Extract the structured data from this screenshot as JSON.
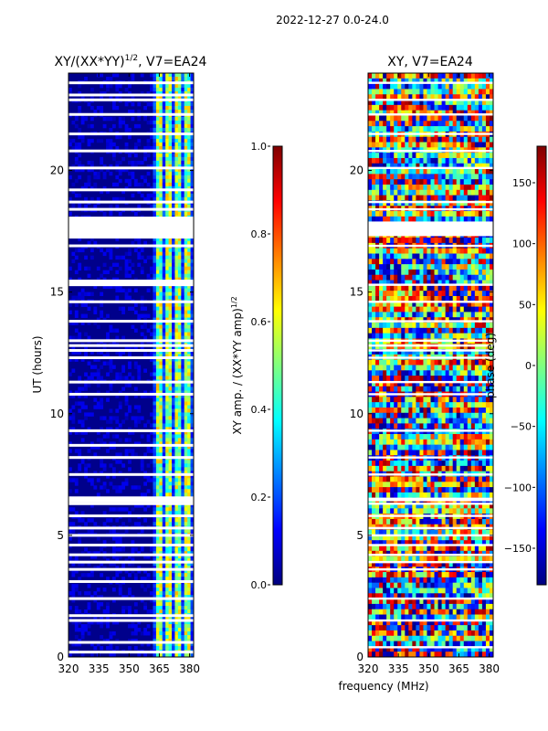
{
  "figure": {
    "suptitle": "2022-12-27 0.0-24.0",
    "shared_xlabel": "frequency (MHz)"
  },
  "colors": {
    "background_low": "#00008b",
    "white": "#ffffff",
    "axis": "#000000"
  },
  "chart_data": [
    {
      "type": "heatmap",
      "name": "amp-ratio",
      "title_text": "XY/(XX*YY)",
      "title_sup": "1/2",
      "title_suffix": ", V7=EA24",
      "xlabel": "",
      "ylabel": "UT (hours)",
      "xlim": [
        320,
        382
      ],
      "ylim": [
        0,
        24
      ],
      "x_ticks": [
        320,
        335,
        350,
        365,
        380
      ],
      "y_ticks": [
        0,
        5,
        10,
        15,
        20
      ],
      "gaps_hours": [
        0.2,
        0.6,
        1.5,
        1.7,
        2.4,
        3.1,
        3.6,
        3.9,
        4.2,
        4.6,
        5.0,
        5.3,
        5.8,
        6.3,
        6.45,
        7.5,
        8.2,
        8.7,
        9.3,
        10.8,
        11.3,
        12.3,
        12.6,
        12.8,
        13.0,
        13.8,
        14.6,
        15.3,
        15.45,
        16.9,
        17.6,
        17.9,
        18.4,
        18.7,
        19.2,
        20.1,
        20.8,
        21.5,
        22.3,
        22.9,
        23.1,
        23.6
      ],
      "gap_wide": [
        [
          6.35,
          6.6
        ],
        [
          15.25,
          15.5
        ],
        [
          17.2,
          18.1
        ]
      ],
      "bright_channels": [
        [
          363,
          366
        ],
        [
          368,
          371
        ],
        [
          373,
          376
        ],
        [
          378,
          381
        ]
      ],
      "colorbar": {
        "label_text": "XY amp. / (XX*YY amp)",
        "label_sup": "1/2",
        "min": 0.0,
        "max": 1.0,
        "ticks": [
          "0.0",
          "0.2",
          "0.4",
          "0.6",
          "0.8",
          "1.0"
        ],
        "tick_values": [
          0.0,
          0.2,
          0.4,
          0.6,
          0.8,
          1.0
        ]
      }
    },
    {
      "type": "heatmap",
      "name": "phase",
      "title_text": "XY, V7=EA24",
      "title_sup": "",
      "title_suffix": "",
      "xlabel": "frequency (MHz)",
      "ylabel": "",
      "xlim": [
        320,
        382
      ],
      "ylim": [
        0,
        24
      ],
      "x_ticks": [
        320,
        335,
        350,
        365,
        380
      ],
      "y_ticks": [
        0,
        5,
        10,
        15,
        20
      ],
      "gaps_hours": [
        0.4,
        1.5,
        2.4,
        3.6,
        3.9,
        4.2,
        4.6,
        5.0,
        5.3,
        5.8,
        6.3,
        7.5,
        8.2,
        9.3,
        10.8,
        11.3,
        12.3,
        12.6,
        12.8,
        13.0,
        13.8,
        14.6,
        15.3,
        16.9,
        17.6,
        18.4,
        18.7,
        20.1,
        20.8,
        21.5,
        22.3,
        22.9,
        23.6
      ],
      "gap_wide": [
        [
          6.4,
          6.55
        ],
        [
          17.3,
          17.9
        ]
      ],
      "colorbar": {
        "label_text": "phase (deg)",
        "label_sup": "",
        "min": -180,
        "max": 180,
        "ticks": [
          "150",
          "100",
          "50",
          "0",
          "−50",
          "−100",
          "−150"
        ],
        "tick_values": [
          150,
          100,
          50,
          0,
          -50,
          -100,
          -150
        ]
      }
    }
  ]
}
